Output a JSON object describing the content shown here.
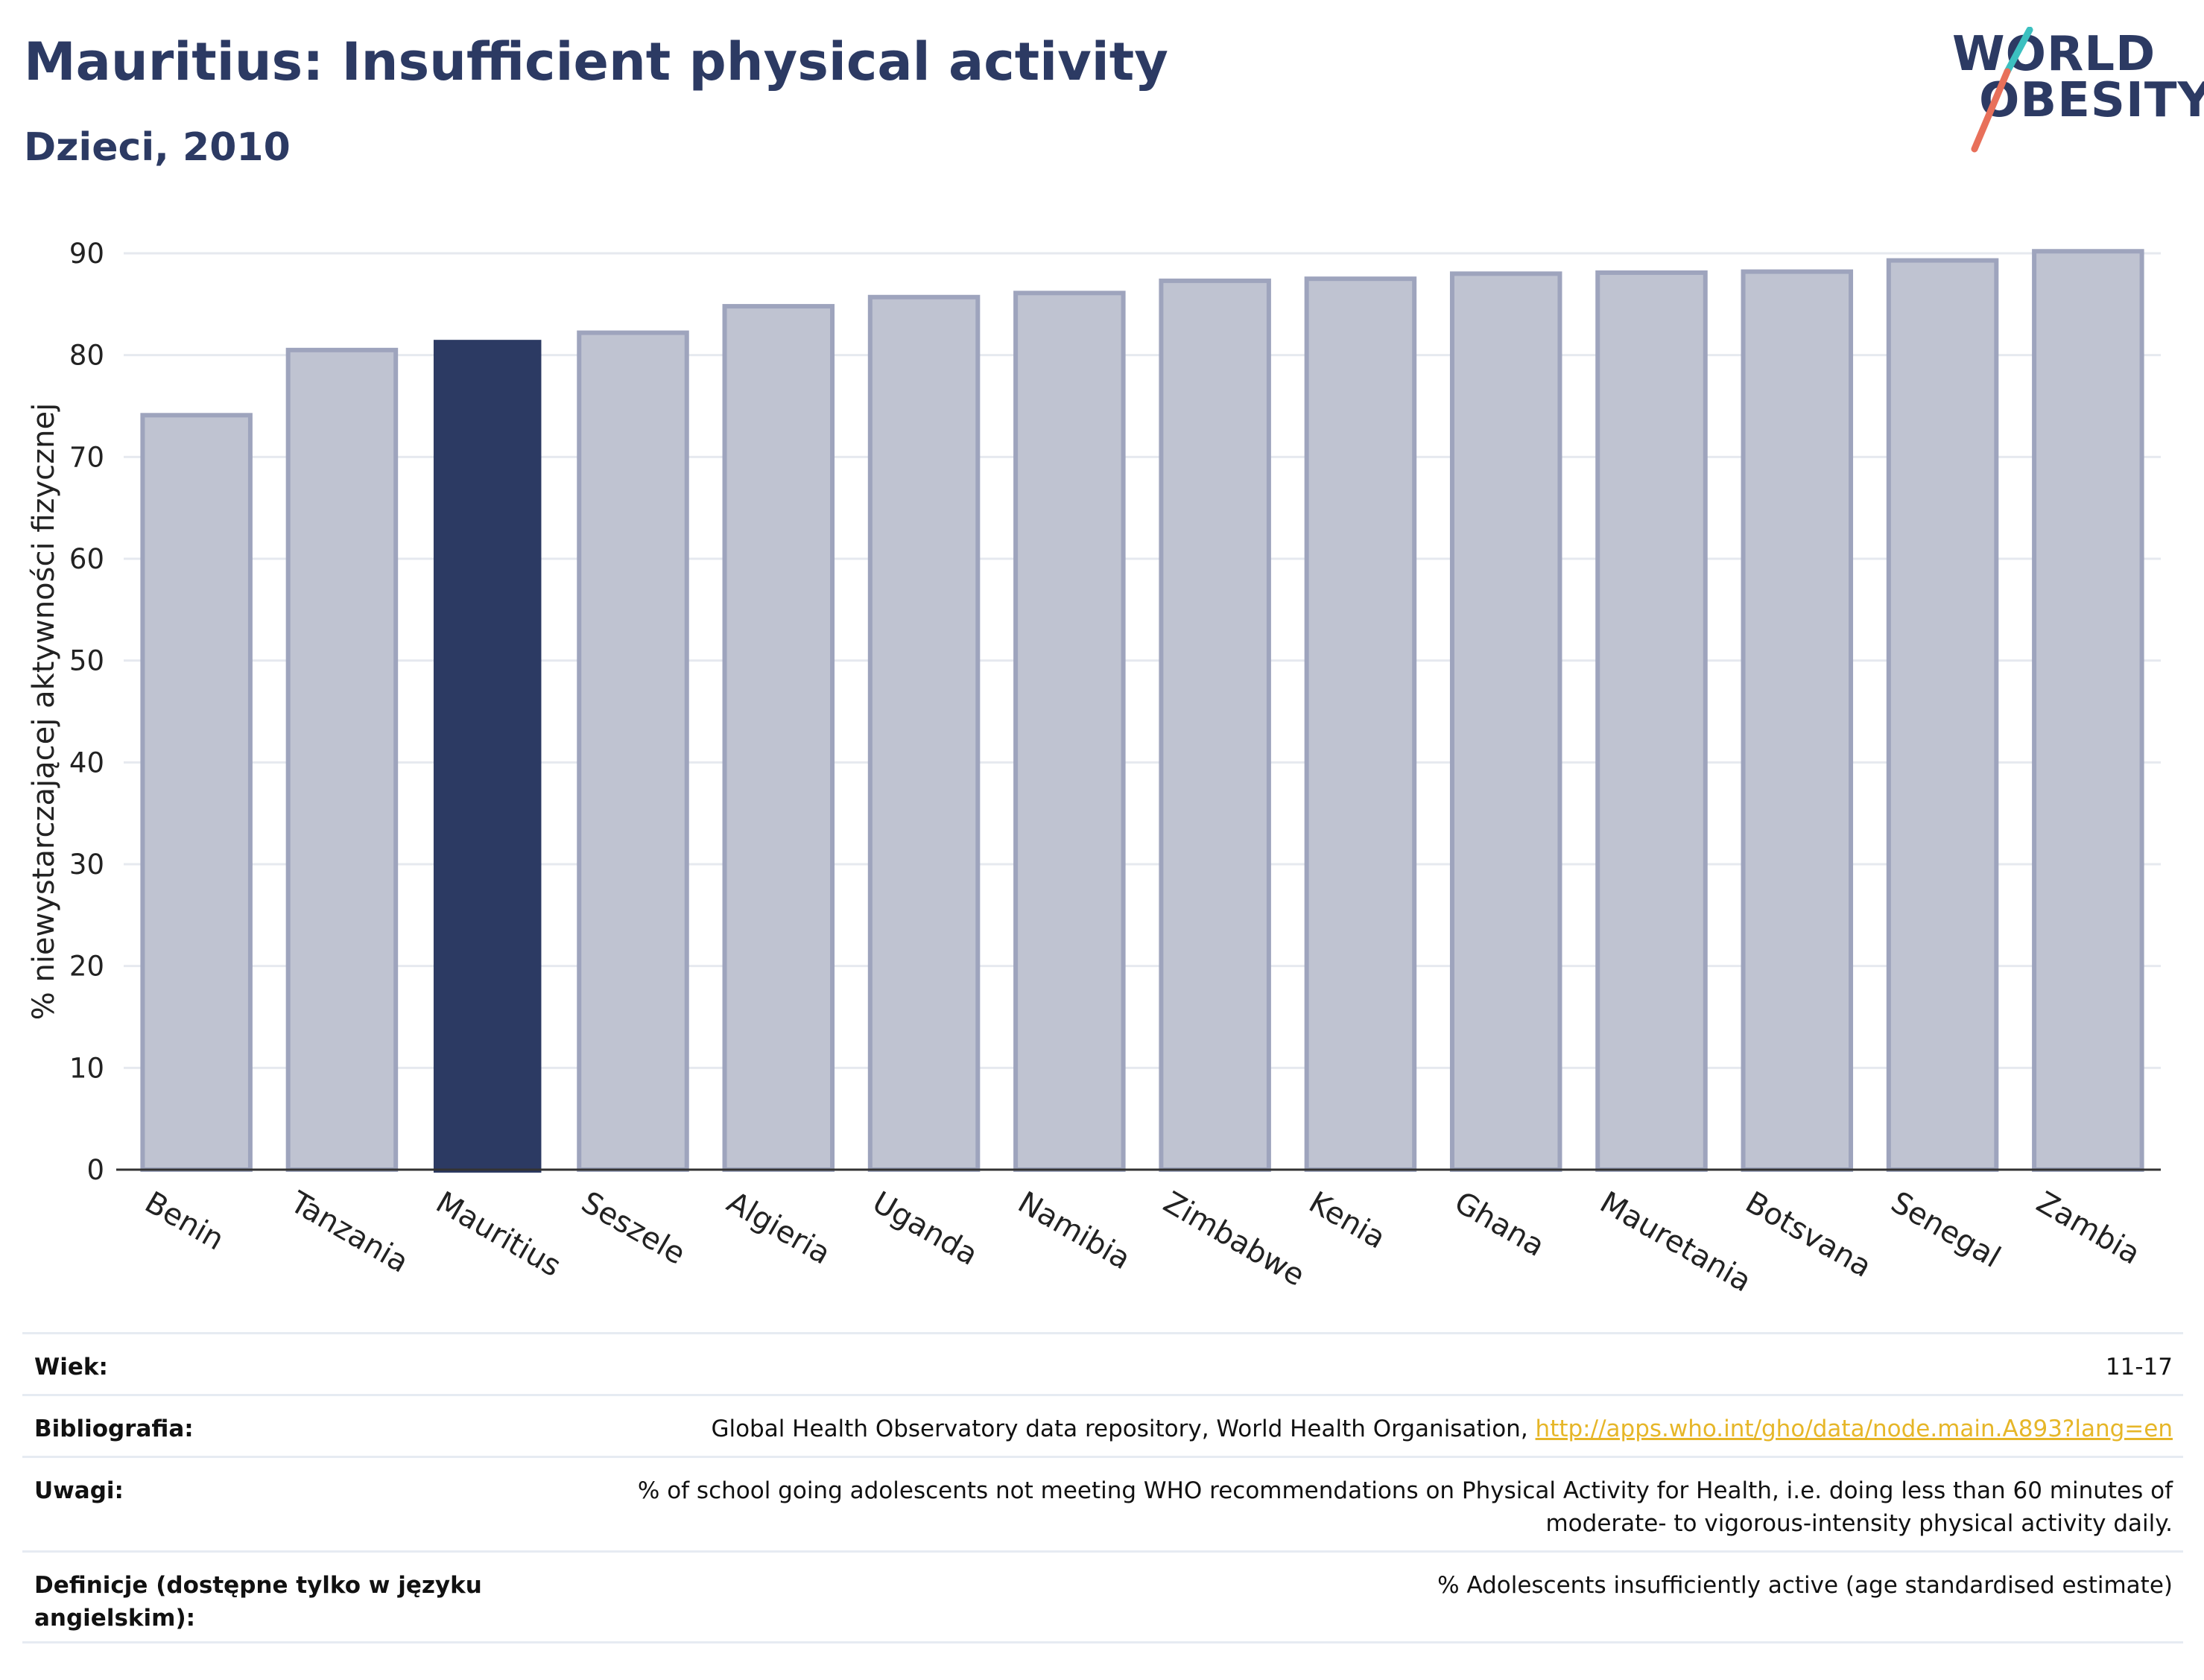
{
  "header": {
    "title": "Mauritius: Insufficient physical activity",
    "subtitle": "Dzieci, 2010"
  },
  "logo": {
    "line1": "WORLD",
    "line2": "OBESITY"
  },
  "colors": {
    "highlight_bar": "#2c3a63",
    "other_bar_fill": "#bfc3d1",
    "other_bar_stroke": "#9ea4bd",
    "title": "#2c3a63",
    "link": "#e6b628"
  },
  "chart_data": {
    "type": "bar",
    "title": "",
    "xlabel": "",
    "ylabel": "% niewystarczającej aktywności fizycznej",
    "ylim": [
      0,
      90
    ],
    "yticks": [
      0,
      10,
      20,
      30,
      40,
      50,
      60,
      70,
      80,
      90
    ],
    "grid": true,
    "categories": [
      "Benin",
      "Tanzania",
      "Mauritius",
      "Seszele",
      "Algieria",
      "Uganda",
      "Namibia",
      "Zimbabwe",
      "Kenia",
      "Ghana",
      "Mauretania",
      "Botsvana",
      "Senegal",
      "Zambia"
    ],
    "values": [
      74.1,
      80.5,
      81.5,
      82.2,
      84.8,
      85.7,
      86.1,
      87.3,
      87.5,
      88.0,
      88.1,
      88.2,
      89.3,
      90.2
    ],
    "highlight": "Mauritius"
  },
  "meta": {
    "age_label": "Wiek:",
    "age_value": "11-17",
    "bib_label": "Bibliografia:",
    "bib_text": "Global Health Observatory data repository, World Health Organisation, ",
    "bib_link": "http://apps.who.int/gho/data/node.main.A893?lang=en",
    "notes_label": "Uwagi:",
    "notes_line1": "% of school going adolescents not meeting WHO recommendations on Physical Activity for Health, i.e. doing less than 60 minutes of",
    "notes_line2": "moderate- to vigorous-intensity physical activity daily.",
    "def_label_line1": "Definicje (dostępne tylko w języku",
    "def_label_line2": "angielskim):",
    "def_value": "% Adolescents insufficiently active (age standardised estimate)"
  }
}
